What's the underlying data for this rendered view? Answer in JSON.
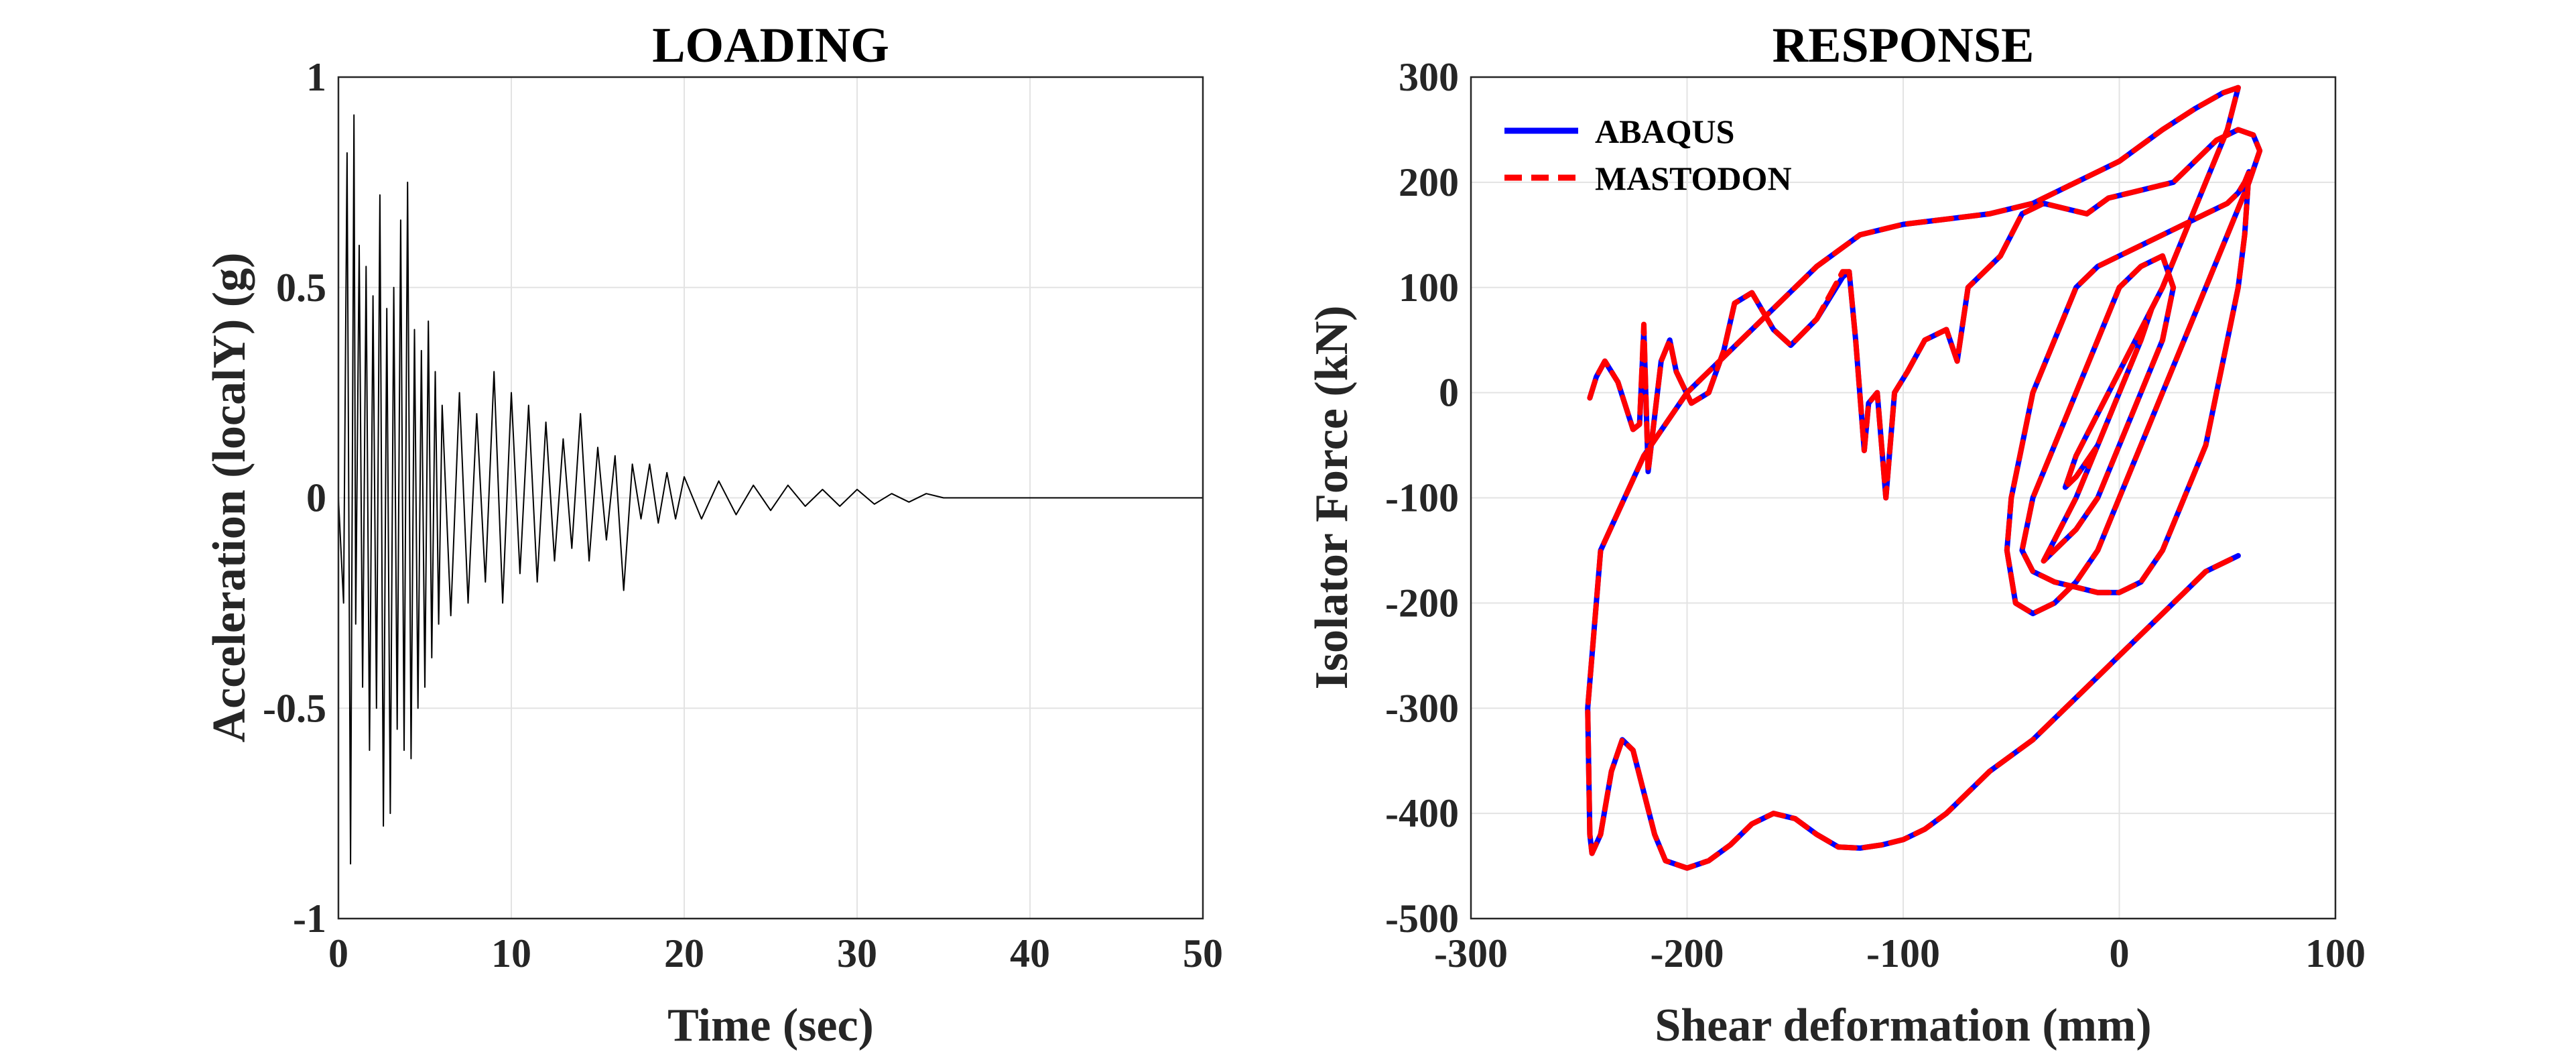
{
  "chart_data": [
    {
      "type": "line",
      "title": "LOADING",
      "xlabel": "Time (sec)",
      "ylabel": "Acceleration (localY) (g)",
      "xlim": [
        0,
        50
      ],
      "ylim": [
        -1,
        1
      ],
      "xticks": [
        0,
        10,
        20,
        30,
        40,
        50
      ],
      "yticks": [
        -1,
        -0.5,
        0,
        0.5,
        1
      ],
      "xtick_labels": [
        "0",
        "10",
        "20",
        "30",
        "40",
        "50"
      ],
      "ytick_labels": [
        "-1",
        "-0.5",
        "0",
        "0.5",
        "1"
      ],
      "grid": true,
      "series": [
        {
          "color": "#000000",
          "x": [
            0,
            0.3,
            0.5,
            0.7,
            0.9,
            1.0,
            1.2,
            1.4,
            1.6,
            1.8,
            2.0,
            2.2,
            2.4,
            2.6,
            2.8,
            3.0,
            3.2,
            3.4,
            3.6,
            3.8,
            4.0,
            4.2,
            4.4,
            4.6,
            4.8,
            5.0,
            5.2,
            5.4,
            5.6,
            5.8,
            6.0,
            6.5,
            7.0,
            7.5,
            8.0,
            8.5,
            9.0,
            9.5,
            10.0,
            10.5,
            11.0,
            11.5,
            12.0,
            12.5,
            13.0,
            13.5,
            14.0,
            14.5,
            15.0,
            15.5,
            16.0,
            16.5,
            17.0,
            17.5,
            18.0,
            18.5,
            19.0,
            19.5,
            20.0,
            21.0,
            22.0,
            23.0,
            24.0,
            25.0,
            26.0,
            27.0,
            28.0,
            29.0,
            30.0,
            31.0,
            32.0,
            33.0,
            34.0,
            35.0,
            36.0,
            50.0
          ],
          "y": [
            0,
            -0.25,
            0.82,
            -0.87,
            0.91,
            -0.3,
            0.6,
            -0.45,
            0.55,
            -0.6,
            0.48,
            -0.5,
            0.72,
            -0.78,
            0.45,
            -0.75,
            0.5,
            -0.55,
            0.66,
            -0.6,
            0.75,
            -0.62,
            0.4,
            -0.5,
            0.35,
            -0.45,
            0.42,
            -0.38,
            0.3,
            -0.3,
            0.22,
            -0.28,
            0.25,
            -0.25,
            0.2,
            -0.2,
            0.3,
            -0.25,
            0.25,
            -0.18,
            0.22,
            -0.2,
            0.18,
            -0.15,
            0.14,
            -0.12,
            0.2,
            -0.15,
            0.12,
            -0.1,
            0.1,
            -0.22,
            0.08,
            -0.05,
            0.08,
            -0.06,
            0.06,
            -0.05,
            0.05,
            -0.05,
            0.04,
            -0.04,
            0.03,
            -0.03,
            0.03,
            -0.02,
            0.02,
            -0.02,
            0.02,
            -0.015,
            0.01,
            -0.01,
            0.01,
            0.0,
            0.0,
            0.0
          ]
        }
      ]
    },
    {
      "type": "line",
      "title": "RESPONSE",
      "xlabel": "Shear deformation (mm)",
      "ylabel": "Isolator Force (kN)",
      "xlim": [
        -300,
        100
      ],
      "ylim": [
        -500,
        300
      ],
      "xticks": [
        -300,
        -200,
        -100,
        0,
        100
      ],
      "yticks": [
        -500,
        -400,
        -300,
        -200,
        -100,
        0,
        100,
        200,
        300
      ],
      "xtick_labels": [
        "-300",
        "-200",
        "-100",
        "0",
        "100"
      ],
      "ytick_labels": [
        "-500",
        "-400",
        "-300",
        "-200",
        "-100",
        "0",
        "100",
        "200",
        "300"
      ],
      "grid": true,
      "legend": {
        "placement": "top-left"
      },
      "series": [
        {
          "name": "ABAQUS",
          "color": "#0000ff",
          "dash": "solid",
          "x": [
            -245,
            -242,
            -238,
            -232,
            -225,
            -222,
            -220,
            -218,
            -212,
            -208,
            -205,
            -198,
            -190,
            -183,
            -178,
            -170,
            -160,
            -152,
            -140,
            -128,
            -125,
            -122,
            -118,
            -116,
            -112,
            -108,
            -104,
            -98,
            -90,
            -80,
            -75,
            -70,
            -65,
            -55,
            -45,
            -40,
            -35,
            -25,
            -15,
            -5,
            5,
            15,
            25,
            35,
            45,
            55,
            62,
            65,
            60,
            50,
            40,
            30,
            20,
            10,
            0,
            -10,
            -20,
            -30,
            -40,
            -48,
            -52,
            -50,
            -45,
            -40,
            -30,
            -20,
            -10,
            0,
            10,
            20,
            30,
            40,
            50,
            55,
            58,
            60,
            58,
            55,
            50,
            45,
            40,
            30,
            20,
            10,
            0,
            -10,
            -20,
            -30,
            -40,
            -45,
            -40,
            -30,
            -20,
            -10,
            0,
            10,
            20,
            25,
            20,
            10,
            0,
            -10,
            -20,
            -30,
            -35,
            -30,
            -20,
            -10,
            0,
            10,
            15,
            10,
            0,
            -10,
            -20,
            -25,
            -20,
            -10,
            0,
            10,
            20,
            30,
            40,
            50,
            55,
            48,
            35,
            20,
            0,
            -20,
            -40,
            -60,
            -80,
            -100,
            -120,
            -140,
            -160,
            -180,
            -200,
            -220,
            -240,
            -246,
            -245,
            -244,
            -240,
            -235,
            -230,
            -225,
            -220,
            -215,
            -210,
            -200,
            -190,
            -180,
            -170,
            -160,
            -150,
            -140,
            -130,
            -120,
            -110,
            -100,
            -90,
            -80,
            -70,
            -60,
            -50,
            -40,
            -30,
            -20,
            -10,
            0,
            10,
            20,
            30,
            40,
            50,
            55
          ],
          "y": [
            -5,
            15,
            30,
            10,
            -35,
            -30,
            60,
            -75,
            30,
            50,
            20,
            -10,
            0,
            40,
            85,
            95,
            60,
            45,
            70,
            110,
            115,
            50,
            -55,
            -10,
            0,
            -100,
            0,
            20,
            50,
            60,
            30,
            100,
            110,
            130,
            170,
            175,
            180,
            175,
            170,
            185,
            190,
            195,
            200,
            220,
            240,
            250,
            245,
            230,
            200,
            150,
            100,
            50,
            0,
            -50,
            -100,
            -150,
            -180,
            -200,
            -210,
            -200,
            -150,
            -100,
            -50,
            0,
            50,
            100,
            120,
            130,
            140,
            150,
            160,
            170,
            180,
            190,
            200,
            210,
            150,
            100,
            50,
            0,
            -50,
            -100,
            -150,
            -180,
            -190,
            -190,
            -185,
            -180,
            -170,
            -150,
            -100,
            -50,
            0,
            50,
            100,
            120,
            130,
            100,
            50,
            0,
            -50,
            -100,
            -130,
            -150,
            -160,
            -140,
            -100,
            -50,
            0,
            50,
            80,
            50,
            0,
            -50,
            -80,
            -90,
            -60,
            -20,
            20,
            60,
            100,
            150,
            200,
            250,
            290,
            285,
            270,
            250,
            220,
            200,
            180,
            170,
            165,
            160,
            150,
            120,
            80,
            40,
            0,
            -60,
            -150,
            -300,
            -420,
            -438,
            -420,
            -360,
            -330,
            -340,
            -380,
            -420,
            -445,
            -452,
            -445,
            -430,
            -410,
            -400,
            -405,
            -420,
            -432,
            -433,
            -430,
            -425,
            -415,
            -400,
            -380,
            -360,
            -345,
            -330,
            -310,
            -290,
            -270,
            -250,
            -230,
            -210,
            -190,
            -170,
            -160,
            -155
          ]
        },
        {
          "name": "MASTODON",
          "color": "#ff0000",
          "dash": "dashed",
          "x": [
            -245,
            -242,
            -238,
            -232,
            -225,
            -222,
            -220,
            -218,
            -212,
            -208,
            -205,
            -198,
            -190,
            -183,
            -178,
            -170,
            -160,
            -152,
            -140,
            -128,
            -125,
            -122,
            -118,
            -116,
            -112,
            -108,
            -104,
            -98,
            -90,
            -80,
            -75,
            -70,
            -65,
            -55,
            -45,
            -40,
            -35,
            -25,
            -15,
            -5,
            5,
            15,
            25,
            35,
            45,
            55,
            62,
            65,
            60,
            50,
            40,
            30,
            20,
            10,
            0,
            -10,
            -20,
            -30,
            -40,
            -48,
            -52,
            -50,
            -45,
            -40,
            -30,
            -20,
            -10,
            0,
            10,
            20,
            30,
            40,
            50,
            55,
            58,
            60,
            58,
            55,
            50,
            45,
            40,
            30,
            20,
            10,
            0,
            -10,
            -20,
            -30,
            -40,
            -45,
            -40,
            -30,
            -20,
            -10,
            0,
            10,
            20,
            25,
            20,
            10,
            0,
            -10,
            -20,
            -30,
            -35,
            -30,
            -20,
            -10,
            0,
            10,
            15,
            10,
            0,
            -10,
            -20,
            -25,
            -20,
            -10,
            0,
            10,
            20,
            30,
            40,
            50,
            55,
            48,
            35,
            20,
            0,
            -20,
            -40,
            -60,
            -80,
            -100,
            -120,
            -140,
            -160,
            -180,
            -200,
            -220,
            -240,
            -246,
            -245,
            -244,
            -240,
            -235,
            -230,
            -225,
            -220,
            -215,
            -210,
            -200,
            -190,
            -180,
            -170,
            -160,
            -150,
            -140,
            -130,
            -120,
            -110,
            -100,
            -90,
            -80,
            -70,
            -60,
            -50,
            -40,
            -30,
            -20,
            -10,
            0,
            10,
            20,
            30,
            40,
            50,
            55
          ],
          "y": [
            -5,
            15,
            30,
            10,
            -35,
            -30,
            65,
            -75,
            30,
            50,
            20,
            -10,
            0,
            40,
            85,
            95,
            60,
            45,
            70,
            115,
            115,
            50,
            -55,
            -10,
            0,
            -100,
            0,
            20,
            50,
            60,
            30,
            100,
            110,
            130,
            170,
            175,
            180,
            175,
            170,
            185,
            190,
            195,
            200,
            220,
            240,
            250,
            245,
            230,
            200,
            150,
            100,
            50,
            0,
            -50,
            -100,
            -150,
            -180,
            -200,
            -210,
            -200,
            -150,
            -100,
            -50,
            0,
            50,
            100,
            120,
            130,
            140,
            150,
            160,
            170,
            180,
            190,
            200,
            210,
            150,
            100,
            50,
            0,
            -50,
            -100,
            -150,
            -180,
            -190,
            -190,
            -185,
            -180,
            -170,
            -150,
            -100,
            -50,
            0,
            50,
            100,
            120,
            130,
            100,
            50,
            0,
            -50,
            -100,
            -130,
            -150,
            -160,
            -140,
            -100,
            -50,
            0,
            50,
            80,
            50,
            0,
            -50,
            -80,
            -90,
            -60,
            -20,
            20,
            60,
            100,
            150,
            200,
            250,
            290,
            285,
            270,
            250,
            220,
            200,
            180,
            170,
            165,
            160,
            150,
            120,
            80,
            40,
            0,
            -60,
            -150,
            -300,
            -420,
            -438,
            -420,
            -360,
            -330,
            -340,
            -380,
            -420,
            -445,
            -452,
            -445,
            -430,
            -410,
            -400,
            -405,
            -420,
            -432,
            -433,
            -430,
            -425,
            -415,
            -400,
            -380,
            -360,
            -345,
            -330,
            -310,
            -290,
            -270,
            -250,
            -230,
            -210,
            -190,
            -170,
            -160,
            -155
          ]
        }
      ]
    }
  ]
}
